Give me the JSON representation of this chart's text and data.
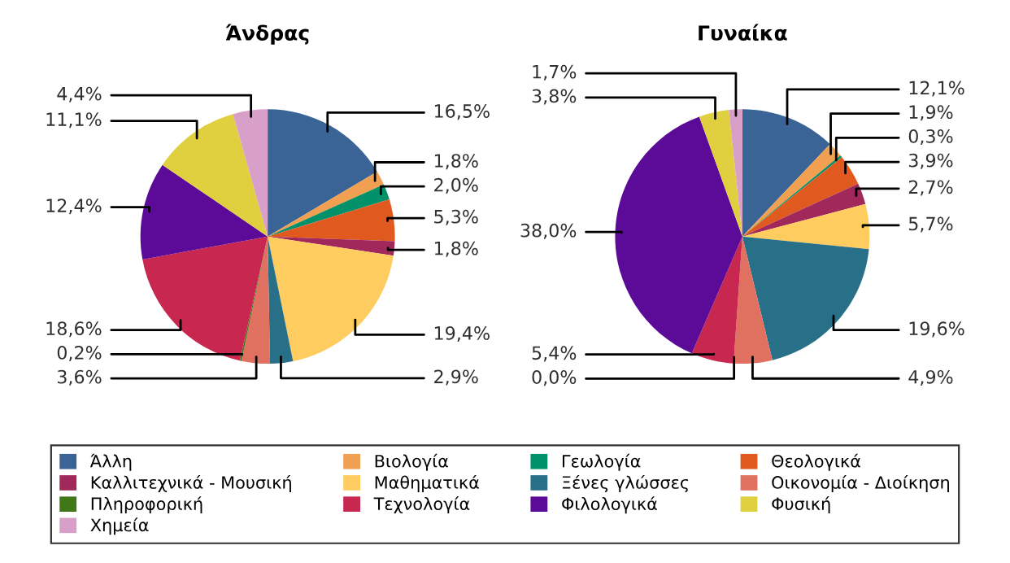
{
  "chart_data": [
    {
      "type": "pie",
      "title": "Άνδρας",
      "legend": "bottom",
      "categories": [
        "Άλλη",
        "Βιολογία",
        "Γεωλογία",
        "Θεολογικά",
        "Καλλιτεχνικά - Μουσική",
        "Μαθηματικά",
        "Ξένες γλώσσες",
        "Οικονομία - Διοίκηση",
        "Πληροφορική",
        "Τεχνολογία",
        "Φιλολογικά",
        "Φυσική",
        "Χημεία"
      ],
      "values": [
        16.5,
        1.8,
        2.0,
        5.3,
        1.8,
        19.4,
        2.9,
        3.6,
        0.2,
        18.6,
        12.4,
        11.1,
        4.4
      ],
      "value_labels": [
        "16,5%",
        "1,8%",
        "2,0%",
        "5,3%",
        "1,8%",
        "19,4%",
        "2,9%",
        "3,6%",
        "0,2%",
        "18,6%",
        "12,4%",
        "11,1%",
        "4,4%"
      ],
      "colors": [
        "#3a6496",
        "#f0a050",
        "#00906a",
        "#e05a20",
        "#a0285a",
        "#ffcc60",
        "#287088",
        "#e07060",
        "#407818",
        "#c82850",
        "#5c0a98",
        "#e0d040",
        "#d8a0c8"
      ]
    },
    {
      "type": "pie",
      "title": "Γυναίκα",
      "categories": [
        null,
        null,
        null,
        null,
        null,
        null,
        null,
        null,
        null,
        null,
        null,
        null,
        null
      ],
      "values": [
        12.1,
        1.9,
        0.3,
        3.9,
        2.7,
        5.7,
        19.6,
        4.9,
        0.0,
        5.4,
        38.0,
        3.8,
        1.7
      ],
      "value_labels": [
        "12,1%",
        "1,9%",
        "0,3%",
        "3,9%",
        "2,7%",
        "5,7%",
        "19,6%",
        "4,9%",
        "0,0%",
        "5,4%",
        "38,0%",
        "3,8%",
        "1,7%"
      ],
      "colors": [
        "#3a6496",
        "#f0a050",
        "#00906a",
        "#e05a20",
        "#a0285a",
        "#ffcc60",
        "#287088",
        "#e07060",
        "#407818",
        "#c82850",
        "#5c0a98",
        "#e0d040",
        "#d8a0c8"
      ]
    }
  ]
}
